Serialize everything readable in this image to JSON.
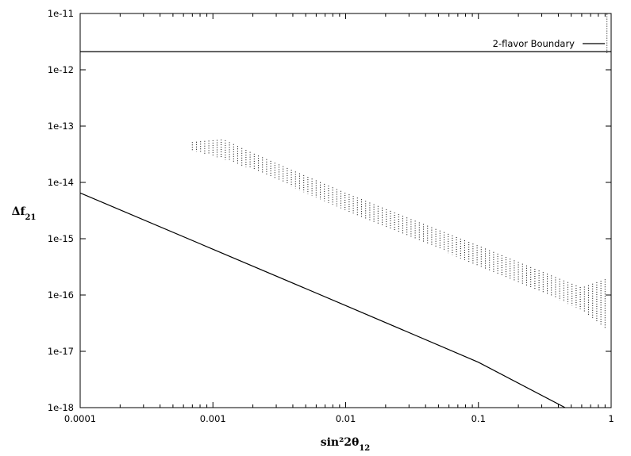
{
  "chart_data": {
    "type": "line",
    "title": "",
    "xlabel": "sin²2θ",
    "xlabel_sub": "12",
    "ylabel": "Δf",
    "ylabel_sub": "21",
    "x_scale": "log",
    "y_scale": "log",
    "xlim": [
      0.0001,
      1
    ],
    "ylim": [
      1e-18,
      1e-11
    ],
    "x_ticks": [
      {
        "value": 0.0001,
        "label": "0.0001"
      },
      {
        "value": 0.001,
        "label": "0.001"
      },
      {
        "value": 0.01,
        "label": "0.01"
      },
      {
        "value": 0.1,
        "label": "0.1"
      },
      {
        "value": 1,
        "label": "1"
      }
    ],
    "y_ticks": [
      {
        "value": 1e-18,
        "label": "1e-18"
      },
      {
        "value": 1e-17,
        "label": "1e-17"
      },
      {
        "value": 1e-16,
        "label": "1e-16"
      },
      {
        "value": 1e-15,
        "label": "1e-15"
      },
      {
        "value": 1e-14,
        "label": "1e-14"
      },
      {
        "value": 1e-13,
        "label": "1e-13"
      },
      {
        "value": 1e-12,
        "label": "1e-12"
      },
      {
        "value": 1e-11,
        "label": "1e-11"
      }
    ],
    "grid": false,
    "legend": {
      "placement": "top-right",
      "entries": [
        "2-flavor Boundary"
      ]
    },
    "series": [
      {
        "name": "2-flavor Boundary",
        "style": "solid",
        "points": [
          [
            0.0001,
            2.1e-12
          ],
          [
            1,
            2.1e-12
          ]
        ]
      },
      {
        "style": "solid",
        "points": [
          [
            0.0001,
            6.5e-15
          ],
          [
            0.001,
            6.5e-16
          ],
          [
            0.01,
            6.5e-17
          ],
          [
            0.1,
            6.4e-18
          ],
          [
            0.45,
            1e-18
          ]
        ]
      },
      {
        "style": "dotted-band",
        "points": [
          {
            "x": 0.0007,
            "low": 3.7e-14,
            "high": 5.2e-14
          },
          {
            "x": 0.0012,
            "low": 2.6e-14,
            "high": 5.8e-14
          },
          {
            "x": 0.002,
            "low": 1.7e-14,
            "high": 3.3e-14
          },
          {
            "x": 0.005,
            "low": 6.5e-15,
            "high": 1.3e-14
          },
          {
            "x": 0.01,
            "low": 3.2e-15,
            "high": 6.5e-15
          },
          {
            "x": 0.03,
            "low": 1.1e-15,
            "high": 2.3e-15
          },
          {
            "x": 0.1,
            "low": 3.3e-16,
            "high": 7.5e-16
          },
          {
            "x": 0.3,
            "low": 1.1e-16,
            "high": 2.6e-16
          },
          {
            "x": 0.6,
            "low": 5.5e-17,
            "high": 1.35e-16
          },
          {
            "x": 0.9,
            "low": 2.6e-17,
            "high": 1.9e-16
          }
        ]
      },
      {
        "style": "dotted",
        "points": [
          [
            0.93,
            2e-12
          ],
          [
            0.93,
            1e-11
          ]
        ]
      }
    ]
  }
}
